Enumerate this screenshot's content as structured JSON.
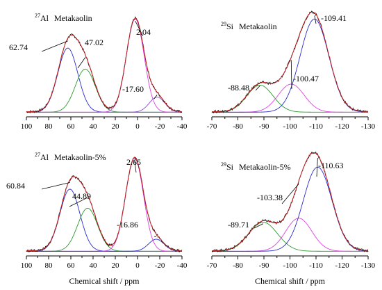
{
  "colors": {
    "experimental": "#1a1a1a",
    "fit": "#d02020",
    "component_green": "#2a9a2a",
    "component_blue": "#2a2ad0",
    "component_magenta": "#e040e0",
    "component_purple": "#8a4ad0",
    "axis": "#000000"
  },
  "chart_data": [
    {
      "type": "line",
      "nucleus": "27",
      "element": "Al",
      "sample": "Metakaolin",
      "xlabel": "",
      "xlim": [
        100,
        -40
      ],
      "x_ticks": [
        100,
        80,
        60,
        40,
        20,
        0,
        -20,
        -40
      ],
      "ylim": [
        0,
        1
      ],
      "series": [
        {
          "color_key": "component_blue",
          "kind": "component",
          "center": 62.74,
          "width": 9,
          "height": 0.64
        },
        {
          "color_key": "component_green",
          "kind": "component",
          "center": 47.02,
          "width": 9,
          "height": 0.43
        },
        {
          "color_key": "component_magenta",
          "kind": "component",
          "center": 2.04,
          "width": 8,
          "height": 0.93
        },
        {
          "color_key": "component_purple",
          "kind": "component",
          "center": -17.6,
          "width": 7,
          "height": 0.15
        }
      ],
      "peak_labels": [
        {
          "text": "62.74",
          "x": 62.74
        },
        {
          "text": "47.02",
          "x": 47.02
        },
        {
          "text": "2.04",
          "x": 2.04
        },
        {
          "text": "-17.60",
          "x": -17.6
        }
      ]
    },
    {
      "type": "line",
      "nucleus": "29",
      "element": "Si",
      "sample": "Metakaolin",
      "xlabel": "",
      "xlim": [
        -70,
        -130
      ],
      "x_ticks": [
        -70,
        -80,
        -90,
        -100,
        -110,
        -120,
        -130
      ],
      "ylim": [
        0,
        1
      ],
      "series": [
        {
          "color_key": "component_green",
          "kind": "component",
          "center": -88.48,
          "width": 5,
          "height": 0.27
        },
        {
          "color_key": "component_magenta",
          "kind": "component",
          "center": -100.47,
          "width": 5,
          "height": 0.28
        },
        {
          "color_key": "component_blue",
          "kind": "component",
          "center": -109.41,
          "width": 5.5,
          "height": 0.93
        }
      ],
      "peak_labels": [
        {
          "text": "-88.48",
          "x": -88.48
        },
        {
          "text": "-100.47",
          "x": -100.47
        },
        {
          "text": "-109.41",
          "x": -109.41
        }
      ]
    },
    {
      "type": "line",
      "nucleus": "27",
      "element": "Al",
      "sample": "Metakaolin-5%",
      "xlabel": "Chemical shift / ppm",
      "xlim": [
        100,
        -40
      ],
      "x_ticks": [
        100,
        80,
        60,
        40,
        20,
        0,
        -20,
        -40
      ],
      "ylim": [
        0,
        1
      ],
      "series": [
        {
          "color_key": "component_blue",
          "kind": "component",
          "center": 60.84,
          "width": 9,
          "height": 0.62
        },
        {
          "color_key": "component_green",
          "kind": "component",
          "center": 44.89,
          "width": 9,
          "height": 0.43
        },
        {
          "color_key": "component_magenta",
          "kind": "component",
          "center": 2.65,
          "width": 8,
          "height": 0.93
        },
        {
          "color_key": "component_blue",
          "kind": "component",
          "center": -16.86,
          "width": 7,
          "height": 0.12
        }
      ],
      "peak_labels": [
        {
          "text": "60.84",
          "x": 60.84
        },
        {
          "text": "44.89",
          "x": 44.89
        },
        {
          "text": "2.65",
          "x": 2.65
        },
        {
          "text": "-16.86",
          "x": -16.86
        }
      ]
    },
    {
      "type": "line",
      "nucleus": "29",
      "element": "Si",
      "sample": "Metakaolin-5%",
      "xlabel": "Chemical shift / ppm",
      "xlim": [
        -70,
        -130
      ],
      "x_ticks": [
        -70,
        -80,
        -90,
        -100,
        -110,
        -120,
        -130
      ],
      "ylim": [
        0,
        1
      ],
      "series": [
        {
          "color_key": "component_green",
          "kind": "component",
          "center": -89.71,
          "width": 5.5,
          "height": 0.29
        },
        {
          "color_key": "component_magenta",
          "kind": "component",
          "center": -103.38,
          "width": 5,
          "height": 0.33
        },
        {
          "color_key": "component_blue",
          "kind": "component",
          "center": -110.63,
          "width": 5.5,
          "height": 0.84
        }
      ],
      "peak_labels": [
        {
          "text": "-89.71",
          "x": -89.71
        },
        {
          "text": "-103.38",
          "x": -103.38
        },
        {
          "text": "-110.63",
          "x": -110.63
        }
      ]
    }
  ]
}
